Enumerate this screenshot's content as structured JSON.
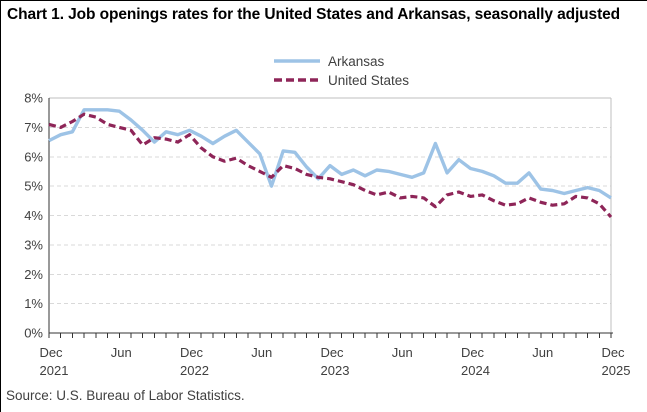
{
  "chart_data": {
    "type": "line",
    "title": "Chart 1. Job openings rates for the United States and Arkansas, seasonally adjusted",
    "source": "Source: U.S. Bureau of Labor Statistics.",
    "xlabel": "",
    "ylabel": "",
    "ylim": [
      0,
      8
    ],
    "y_ticks": [
      "0%",
      "1%",
      "2%",
      "3%",
      "4%",
      "5%",
      "6%",
      "7%",
      "8%"
    ],
    "grid": "horizontal-dashed",
    "legend_position": "top-center",
    "minor_x_ticks": "monthly",
    "x": [
      "Dec 2021",
      "Jan 2022",
      "Feb 2022",
      "Mar 2022",
      "Apr 2022",
      "May 2022",
      "Jun 2022",
      "Jul 2022",
      "Aug 2022",
      "Sep 2022",
      "Oct 2022",
      "Nov 2022",
      "Dec 2022",
      "Jan 2023",
      "Feb 2023",
      "Mar 2023",
      "Apr 2023",
      "May 2023",
      "Jun 2023",
      "Jul 2023",
      "Aug 2023",
      "Sep 2023",
      "Oct 2023",
      "Nov 2023",
      "Dec 2023",
      "Jan 2024",
      "Feb 2024",
      "Mar 2024",
      "Apr 2024",
      "May 2024",
      "Jun 2024",
      "Jul 2024",
      "Aug 2024",
      "Sep 2024",
      "Oct 2024",
      "Nov 2024",
      "Dec 2024",
      "Jan 2025",
      "Feb 2025",
      "Mar 2025",
      "Apr 2025",
      "May 2025",
      "Jun 2025",
      "Jul 2025",
      "Aug 2025",
      "Sep 2025",
      "Oct 2025",
      "Nov 2025",
      "Dec 2025"
    ],
    "x_axis_labels": [
      {
        "month_index": 0,
        "month": "Dec",
        "year": "2021"
      },
      {
        "month_index": 6,
        "month": "Jun",
        "year": ""
      },
      {
        "month_index": 12,
        "month": "Dec",
        "year": "2022"
      },
      {
        "month_index": 18,
        "month": "Jun",
        "year": ""
      },
      {
        "month_index": 24,
        "month": "Dec",
        "year": "2023"
      },
      {
        "month_index": 30,
        "month": "Jun",
        "year": ""
      },
      {
        "month_index": 36,
        "month": "Dec",
        "year": "2024"
      },
      {
        "month_index": 42,
        "month": "Jun",
        "year": ""
      },
      {
        "month_index": 48,
        "month": "Dec",
        "year": "2025"
      }
    ],
    "series": [
      {
        "name": "Arkansas",
        "color": "#9DC3E6",
        "style": "solid",
        "values": [
          6.55,
          6.75,
          6.85,
          7.6,
          7.6,
          7.6,
          7.55,
          7.25,
          6.9,
          6.5,
          6.85,
          6.75,
          6.9,
          6.7,
          6.45,
          6.7,
          6.9,
          6.5,
          6.1,
          5.0,
          6.2,
          6.15,
          5.65,
          5.25,
          5.7,
          5.4,
          5.55,
          5.35,
          5.55,
          5.5,
          5.4,
          5.3,
          5.45,
          6.45,
          5.45,
          5.9,
          5.6,
          5.5,
          5.35,
          5.1,
          5.1,
          5.45,
          4.9,
          4.85,
          4.75,
          4.85,
          4.95,
          4.85,
          4.6
        ]
      },
      {
        "name": "United States",
        "color": "#8E2558",
        "style": "dashed",
        "values": [
          7.1,
          7.0,
          7.2,
          7.45,
          7.35,
          7.1,
          7.0,
          6.9,
          6.4,
          6.65,
          6.6,
          6.5,
          6.75,
          6.3,
          6.0,
          5.85,
          5.95,
          5.7,
          5.5,
          5.3,
          5.7,
          5.6,
          5.4,
          5.3,
          5.25,
          5.15,
          5.05,
          4.85,
          4.7,
          4.8,
          4.6,
          4.65,
          4.6,
          4.3,
          4.7,
          4.8,
          4.65,
          4.7,
          4.5,
          4.35,
          4.4,
          4.6,
          4.45,
          4.35,
          4.4,
          4.65,
          4.6,
          4.4,
          3.95
        ]
      }
    ],
    "colors": {
      "axis": "#333333",
      "plot_border": "#BFBFBF",
      "gridline": "#D9D9D9",
      "tick_label": "#404040"
    }
  }
}
